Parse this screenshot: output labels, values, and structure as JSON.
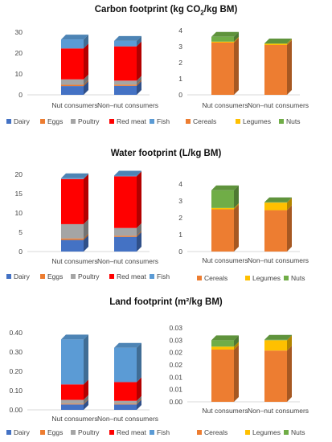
{
  "titles": {
    "carbon_pre": "Carbon footprint (kg CO",
    "carbon_sub": "2",
    "carbon_post": "/kg BM)",
    "water": "Water footprint (L/kg BM)",
    "land": "Land footprint (m²/kg BM)"
  },
  "colors": {
    "Dairy": "#4472c4",
    "Eggs": "#ed7d31",
    "Poultry": "#a5a5a5",
    "Red meat": "#ff0000",
    "Fish": "#5b9bd5",
    "Cereals": "#ed7d31",
    "Legumes": "#ffc000",
    "Nuts": "#70ad47"
  },
  "chart_data": [
    {
      "id": "carbon-animal",
      "type": "bar",
      "stacked": true,
      "categories": [
        "Nut consumers",
        "Non–nut consumers"
      ],
      "ylim": [
        0,
        30
      ],
      "yticks": [
        "0",
        "10",
        "20",
        "30"
      ],
      "ytick_values": [
        0,
        10,
        20,
        30
      ],
      "series": [
        {
          "name": "Dairy",
          "values": [
            4.2,
            4.3
          ]
        },
        {
          "name": "Eggs",
          "values": [
            0.6,
            0.6
          ]
        },
        {
          "name": "Poultry",
          "values": [
            2.6,
            1.9
          ]
        },
        {
          "name": "Red meat",
          "values": [
            14.8,
            16.4
          ]
        },
        {
          "name": "Fish",
          "values": [
            4.3,
            2.6
          ]
        }
      ],
      "legend": "bottom"
    },
    {
      "id": "carbon-plant",
      "type": "bar",
      "stacked": true,
      "categories": [
        "Nut consumers",
        "Non–nut consumers"
      ],
      "ylim": [
        0,
        4
      ],
      "yticks": [
        "0",
        "1",
        "2",
        "3",
        "4"
      ],
      "ytick_values": [
        0,
        1,
        2,
        3,
        4
      ],
      "series": [
        {
          "name": "Cereals",
          "values": [
            3.25,
            3.1
          ]
        },
        {
          "name": "Legumes",
          "values": [
            0.06,
            0.08
          ]
        },
        {
          "name": "Nuts",
          "values": [
            0.3,
            0.02
          ]
        }
      ],
      "legend": "bottom"
    },
    {
      "id": "water-animal",
      "type": "bar",
      "stacked": true,
      "categories": [
        "Nut consumers",
        "Non–nut consumers"
      ],
      "ylim": [
        0,
        20
      ],
      "yticks": [
        "0",
        "5",
        "10",
        "15",
        "20"
      ],
      "ytick_values": [
        0,
        5,
        10,
        15,
        20
      ],
      "series": [
        {
          "name": "Dairy",
          "values": [
            3.0,
            3.8
          ]
        },
        {
          "name": "Eggs",
          "values": [
            0.4,
            0.3
          ]
        },
        {
          "name": "Poultry",
          "values": [
            3.7,
            2.0
          ]
        },
        {
          "name": "Red meat",
          "values": [
            11.7,
            13.4
          ]
        },
        {
          "name": "Fish",
          "values": [
            0.2,
            0.2
          ]
        }
      ],
      "legend": "bottom"
    },
    {
      "id": "water-plant",
      "type": "bar",
      "stacked": true,
      "categories": [
        "Nut consumers",
        "Non–nut consumers"
      ],
      "ylim": [
        0,
        4
      ],
      "yticks": [
        "0",
        "1",
        "2",
        "3",
        "4"
      ],
      "ytick_values": [
        0,
        1,
        2,
        3,
        4
      ],
      "series": [
        {
          "name": "Cereals",
          "values": [
            2.5,
            2.45
          ]
        },
        {
          "name": "Legumes",
          "values": [
            0.08,
            0.45
          ]
        },
        {
          "name": "Nuts",
          "values": [
            1.05,
            0.02
          ]
        }
      ],
      "legend": "bottom"
    },
    {
      "id": "land-animal",
      "type": "bar",
      "stacked": true,
      "categories": [
        "Nut consumers",
        "Non–nut consumers"
      ],
      "ylim": [
        0,
        0.4
      ],
      "yticks": [
        "0.00",
        "0.10",
        "0.20",
        "0.30",
        "0.40"
      ],
      "ytick_values": [
        0,
        0.1,
        0.2,
        0.3,
        0.4
      ],
      "series": [
        {
          "name": "Dairy",
          "values": [
            0.028,
            0.028
          ]
        },
        {
          "name": "Eggs",
          "values": [
            0.004,
            0.004
          ]
        },
        {
          "name": "Poultry",
          "values": [
            0.02,
            0.015
          ]
        },
        {
          "name": "Red meat",
          "values": [
            0.08,
            0.097
          ]
        },
        {
          "name": "Fish",
          "values": [
            0.233,
            0.178
          ]
        }
      ],
      "legend": "bottom"
    },
    {
      "id": "land-plant",
      "type": "bar",
      "stacked": true,
      "categories": [
        "Nut consumers",
        "Non–nut consumers"
      ],
      "ylim": [
        0,
        0.03
      ],
      "yticks": [
        "0.00",
        "0.01",
        "0.01",
        "0.02",
        "0.02",
        "0.03",
        "0.03"
      ],
      "ytick_values": [
        0,
        0.005,
        0.01,
        0.015,
        0.02,
        0.025,
        0.03
      ],
      "series": [
        {
          "name": "Cereals",
          "values": [
            0.0212,
            0.0208
          ]
        },
        {
          "name": "Legumes",
          "values": [
            0.0012,
            0.0042
          ]
        },
        {
          "name": "Nuts",
          "values": [
            0.0026,
            0.0002
          ]
        }
      ],
      "legend": "bottom"
    }
  ]
}
